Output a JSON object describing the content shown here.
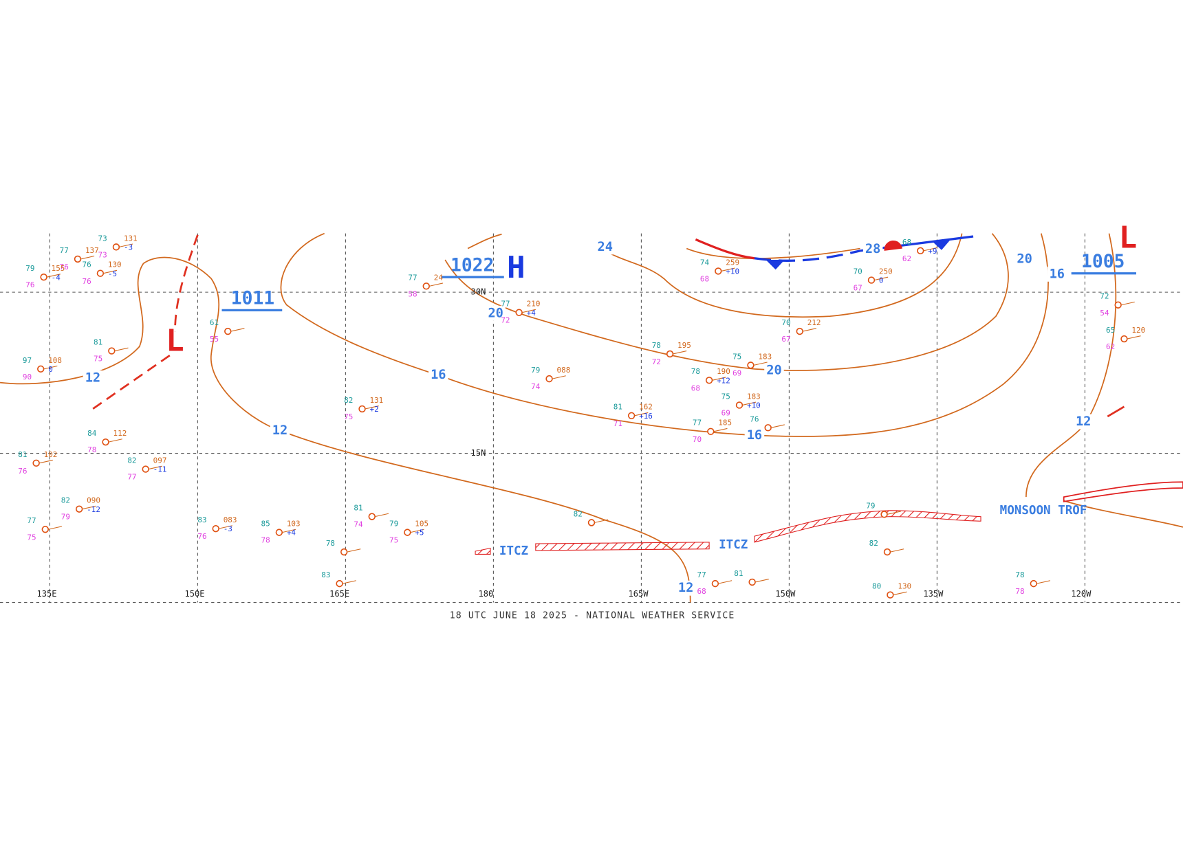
{
  "footer": "18 UTC JUNE 18 2025 - NATIONAL WEATHER SERVICE",
  "grid": {
    "lon_labels": [
      "135E",
      "150E",
      "165E",
      "180",
      "165W",
      "150W",
      "135W",
      "120W"
    ],
    "lat_labels": [
      "30N",
      "15N"
    ]
  },
  "pressure_centers": [
    {
      "value": "1022",
      "symbol": "H"
    },
    {
      "value": "1011",
      "symbol": "L"
    },
    {
      "value": "1005",
      "symbol": "L"
    }
  ],
  "isobar_labels": [
    "12",
    "12",
    "12",
    "12",
    "16",
    "16",
    "16",
    "20",
    "20",
    "20",
    "24",
    "28"
  ],
  "features": [
    "ITCZ",
    "ITCZ",
    "MONSOON TROF"
  ],
  "stations": [
    {
      "t": "77",
      "p": "137",
      "d": "76"
    },
    {
      "t": "73",
      "p": "131",
      "d": "73",
      "tend": "-3"
    },
    {
      "t": "76",
      "p": "130",
      "d": "76",
      "tend": "-5"
    },
    {
      "t": "79",
      "p": "155",
      "d": "76",
      "tend": "-4"
    },
    {
      "t": "97",
      "p": "108",
      "d": "90",
      "tend": "0"
    },
    {
      "t": "81",
      "d": "75"
    },
    {
      "t": "61",
      "d": "55"
    },
    {
      "t": "77",
      "p": "24",
      "d": "58"
    },
    {
      "t": "77",
      "p": "210",
      "d": "72",
      "tend": "+4"
    },
    {
      "t": "79",
      "p": "088",
      "d": "74"
    },
    {
      "t": "78",
      "p": "195",
      "d": "72"
    },
    {
      "t": "78",
      "p": "190",
      "d": "68",
      "tend": "+12"
    },
    {
      "t": "75",
      "p": "183",
      "d": "69"
    },
    {
      "t": "75",
      "p": "183",
      "d": "69",
      "tend": "+10"
    },
    {
      "t": "81",
      "p": "162",
      "d": "71",
      "tend": "+16"
    },
    {
      "t": "77",
      "p": "185",
      "d": "70"
    },
    {
      "t": "76"
    },
    {
      "t": "74",
      "p": "259",
      "d": "68",
      "tend": "+10"
    },
    {
      "t": "70",
      "p": "250",
      "d": "67",
      "tend": "0"
    },
    {
      "t": "70",
      "p": "212",
      "d": "67"
    },
    {
      "t": "68",
      "d": "62",
      "tend": "+9"
    },
    {
      "t": "72",
      "d": "54"
    },
    {
      "t": "65",
      "p": "120",
      "d": "62"
    },
    {
      "t": "82",
      "p": "131",
      "d": "75",
      "tend": "+2"
    },
    {
      "t": "84",
      "p": "112",
      "d": "78"
    },
    {
      "t": "81",
      "p": "102",
      "d": "76"
    },
    {
      "t": "82",
      "p": "097",
      "d": "77",
      "tend": "-11"
    },
    {
      "t": "82",
      "p": "090",
      "d": "79",
      "tend": "-12"
    },
    {
      "t": "77",
      "d": "75"
    },
    {
      "t": "83",
      "p": "083",
      "d": "76",
      "tend": "-3"
    },
    {
      "t": "85",
      "p": "103",
      "d": "78",
      "tend": "+4"
    },
    {
      "t": "79",
      "p": "105",
      "d": "75",
      "tend": "+5"
    },
    {
      "t": "81",
      "d": "74"
    },
    {
      "t": "78"
    },
    {
      "t": "83"
    },
    {
      "t": "82"
    },
    {
      "t": "77",
      "d": "68"
    },
    {
      "t": "81"
    },
    {
      "t": "79"
    },
    {
      "t": "82"
    },
    {
      "t": "78",
      "d": "78"
    },
    {
      "t": "80",
      "p": "130"
    }
  ]
}
